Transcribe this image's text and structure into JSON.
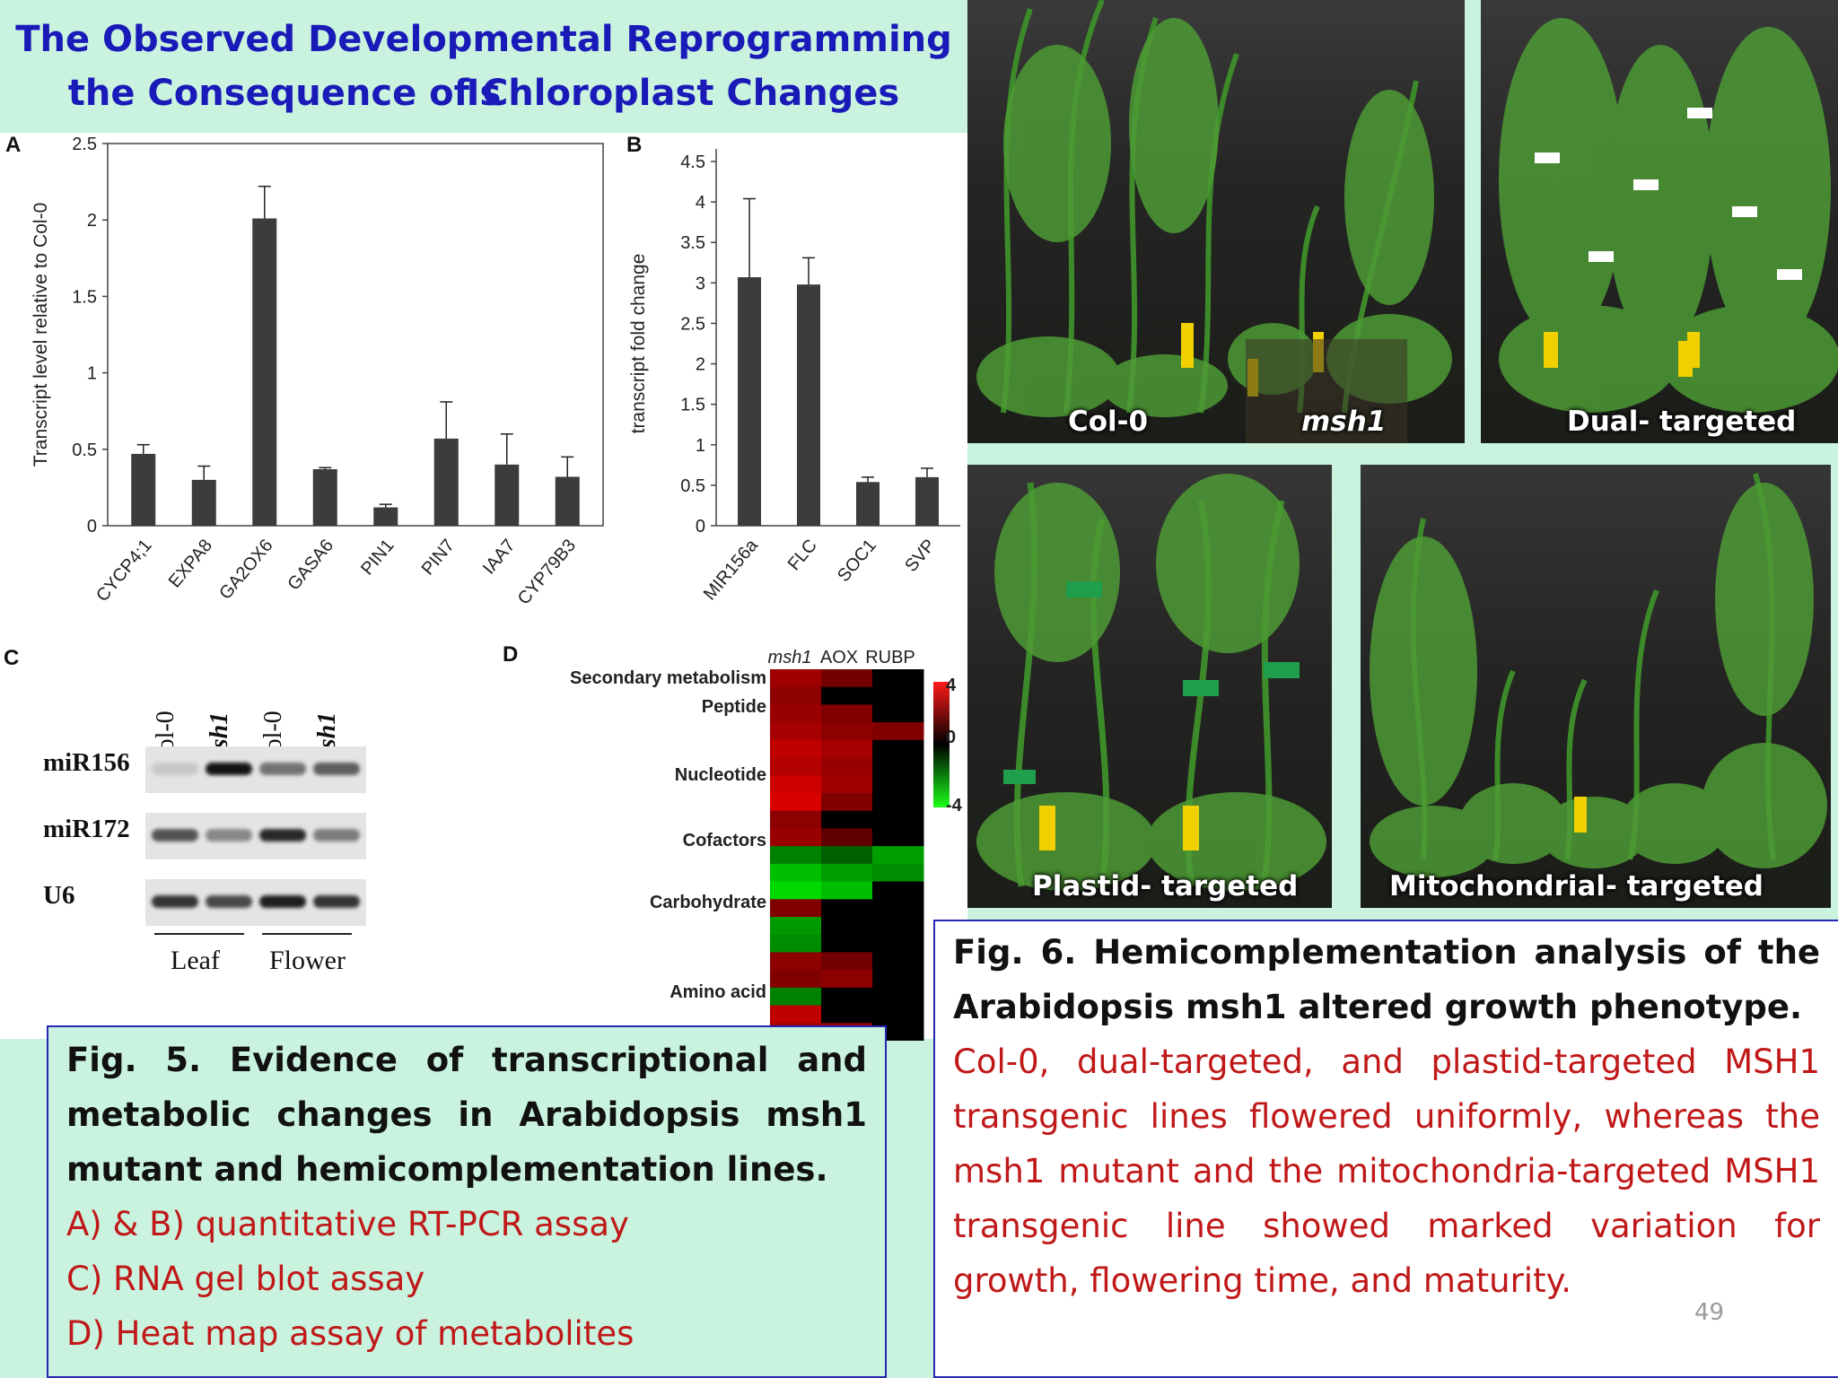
{
  "slide": {
    "title_line1": "The Observed Developmental Reprogramming Is",
    "title_line2": "the Consequence of Chloroplast Changes",
    "page_number": "49"
  },
  "panels": {
    "a": "A",
    "b": "B",
    "c": "C",
    "d": "D"
  },
  "chart_data": [
    {
      "type": "bar",
      "panel": "A",
      "categories": [
        "CYCP4;1",
        "EXPA8",
        "GA2OX6",
        "GASA6",
        "PIN1",
        "PIN7",
        "IAA7",
        "CYP79B3"
      ],
      "values": [
        0.47,
        0.3,
        2.01,
        0.37,
        0.12,
        0.57,
        0.4,
        0.32
      ],
      "errors": [
        0.06,
        0.09,
        0.21,
        0.01,
        0.02,
        0.24,
        0.2,
        0.13
      ],
      "ylabel": "Transcript  level  relative  to Col-0",
      "ylim": [
        0,
        2.5
      ],
      "yticks": [
        "0",
        "0.5",
        "1",
        "1.5",
        "2",
        "2.5"
      ],
      "color": "#3c3c3c"
    },
    {
      "type": "bar",
      "panel": "B",
      "categories": [
        "MIR156a",
        "FLC",
        "SOC1",
        "SVP"
      ],
      "values": [
        3.07,
        2.98,
        0.54,
        0.6
      ],
      "errors": [
        0.97,
        0.33,
        0.06,
        0.11
      ],
      "ylabel": "transcript  fold change",
      "ylim": [
        0,
        4.5
      ],
      "yticks": [
        "0",
        "0.5",
        "1",
        "1.5",
        "2",
        "2.5",
        "3",
        "3.5",
        "4",
        "4.5"
      ],
      "color": "#3c3c3c"
    },
    {
      "type": "heatmap",
      "panel": "D",
      "columns": [
        "msh1",
        "AOX",
        "RUBP"
      ],
      "row_groups": [
        "Secondary metabolism",
        "Peptide",
        "Nucleotide",
        "Cofactors",
        "Carbohydrate",
        "Amino acid"
      ],
      "colorbar_ticks": [
        "4",
        "0",
        "-4"
      ],
      "colors": {
        "high": "#ff1a1a",
        "mid": "#000000",
        "low": "#1aff1a"
      },
      "values": [
        [
          2.5,
          1.8,
          0.0
        ],
        [
          2.2,
          0.0,
          0.0
        ],
        [
          2.4,
          2.0,
          0.0
        ],
        [
          2.6,
          2.2,
          2.0
        ],
        [
          3.0,
          2.6,
          0.0
        ],
        [
          2.8,
          2.4,
          0.0
        ],
        [
          3.2,
          2.5,
          0.0
        ],
        [
          3.4,
          2.0,
          0.0
        ],
        [
          2.2,
          0.0,
          0.0
        ],
        [
          2.4,
          1.5,
          0.0
        ],
        [
          -2.0,
          -1.5,
          -2.5
        ],
        [
          -3.0,
          -2.5,
          -2.2
        ],
        [
          -3.4,
          -3.0,
          0.0
        ],
        [
          2.0,
          0.0,
          0.0
        ],
        [
          -2.4,
          0.0,
          0.0
        ],
        [
          -2.2,
          0.0,
          0.0
        ],
        [
          2.2,
          1.8,
          0.0
        ],
        [
          2.0,
          2.2,
          0.0
        ],
        [
          -2.0,
          0.0,
          0.0
        ],
        [
          3.0,
          0.0,
          0.0
        ],
        [
          2.6,
          2.4,
          0.0
        ]
      ]
    }
  ],
  "blot": {
    "lanes": [
      "Col-0",
      "msh1",
      "Col-0",
      "msh1"
    ],
    "rows": [
      "miR156",
      "miR172",
      "U6"
    ],
    "intensities": [
      [
        0.15,
        1.0,
        0.55,
        0.65
      ],
      [
        0.7,
        0.45,
        0.9,
        0.5
      ],
      [
        0.85,
        0.75,
        0.95,
        0.85
      ]
    ],
    "groups": [
      "Leaf",
      "Flower"
    ]
  },
  "photos": {
    "top_left_labels": [
      "Col-0",
      "msh1"
    ],
    "top_right_label": "Dual- targeted",
    "bottom_left_label": "Plastid- targeted",
    "bottom_right_label": "Mitochondrial- targeted"
  },
  "caption5": {
    "bold": "Fig. 5. Evidence of transcriptional and metabolic changes in Arabidopsis msh1 mutant and hemicomplementation lines.",
    "lines": [
      "A) & B) quantitative RT-PCR assay",
      "C) RNA gel blot assay",
      "D) Heat map assay of metabolites"
    ]
  },
  "caption6": {
    "bold": "Fig. 6. Hemicomplementation analysis of the Arabidopsis msh1 altered growth phenotype.",
    "body": "Col-0, dual-targeted, and plastid-targeted MSH1 transgenic lines flowered uniformly, whereas the msh1 mutant and the mitochondria-targeted MSH1 transgenic line showed marked variation for growth, flowering time, and maturity."
  }
}
